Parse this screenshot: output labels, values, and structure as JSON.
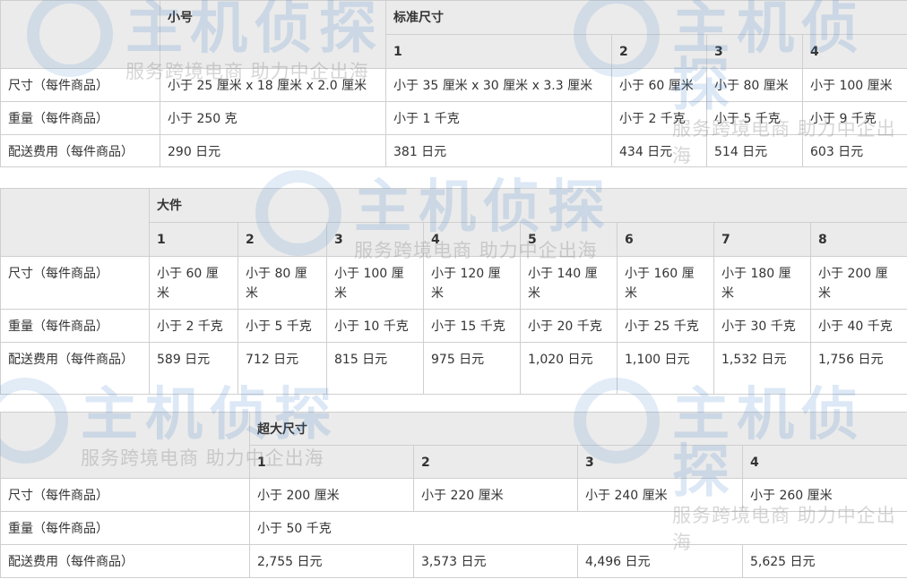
{
  "watermark": {
    "title": "主机侦探",
    "slogan": "服务跨境电商 助力中企出海"
  },
  "table1": {
    "group_headers": [
      "小号",
      "标准尺寸"
    ],
    "sub_headers": [
      "1",
      "2",
      "3",
      "4"
    ],
    "rows": [
      {
        "label": "尺寸（每件商品）",
        "cells": [
          "小于 25 厘米 x 18 厘米 x 2.0 厘米",
          "小于 35 厘米 x 30 厘米 x 3.3 厘米",
          "小于 60 厘米",
          "小于 80 厘米",
          "小于 100 厘米"
        ]
      },
      {
        "label": "重量（每件商品）",
        "cells": [
          "小于 250 克",
          "小于 1 千克",
          "小于 2 千克",
          "小于 5 千克",
          "小于 9 千克"
        ]
      },
      {
        "label": "配送费用（每件商品）",
        "cells": [
          "290 日元",
          "381 日元",
          "434 日元",
          "514 日元",
          "603 日元"
        ]
      }
    ]
  },
  "table2": {
    "group_header": "大件",
    "sub_headers": [
      "1",
      "2",
      "3",
      "4",
      "5",
      "6",
      "7",
      "8"
    ],
    "rows": [
      {
        "label": "尺寸（每件商品）",
        "cells": [
          "小于 60 厘米",
          "小于 80 厘米",
          "小于 100 厘米",
          "小于 120 厘米",
          "小于 140 厘米",
          "小于 160 厘米",
          "小于 180 厘米",
          "小于 200 厘米"
        ]
      },
      {
        "label": "重量（每件商品）",
        "cells": [
          "小于 2 千克",
          "小于 5 千克",
          "小于 10 千克",
          "小于 15 千克",
          "小于 20 千克",
          "小于 25 千克",
          "小于 30 千克",
          "小于 40 千克"
        ]
      },
      {
        "label": "配送费用（每件商品）",
        "cells": [
          "589 日元",
          "712 日元",
          "815 日元",
          "975 日元",
          "1,020 日元",
          "1,100 日元",
          "1,532 日元",
          "1,756 日元"
        ]
      }
    ]
  },
  "table3": {
    "group_header": "超大尺寸",
    "sub_headers": [
      "1",
      "2",
      "3",
      "4"
    ],
    "size_label": "尺寸（每件商品）",
    "sizes": [
      "小于 200 厘米",
      "小于 220 厘米",
      "小于 240 厘米",
      "小于 260 厘米"
    ],
    "weight_label": "重量（每件商品）",
    "weight": "小于 50 千克",
    "fee_label": "配送费用（每件商品）",
    "fees": [
      "2,755 日元",
      "3,573 日元",
      "4,496 日元",
      "5,625 日元"
    ]
  }
}
